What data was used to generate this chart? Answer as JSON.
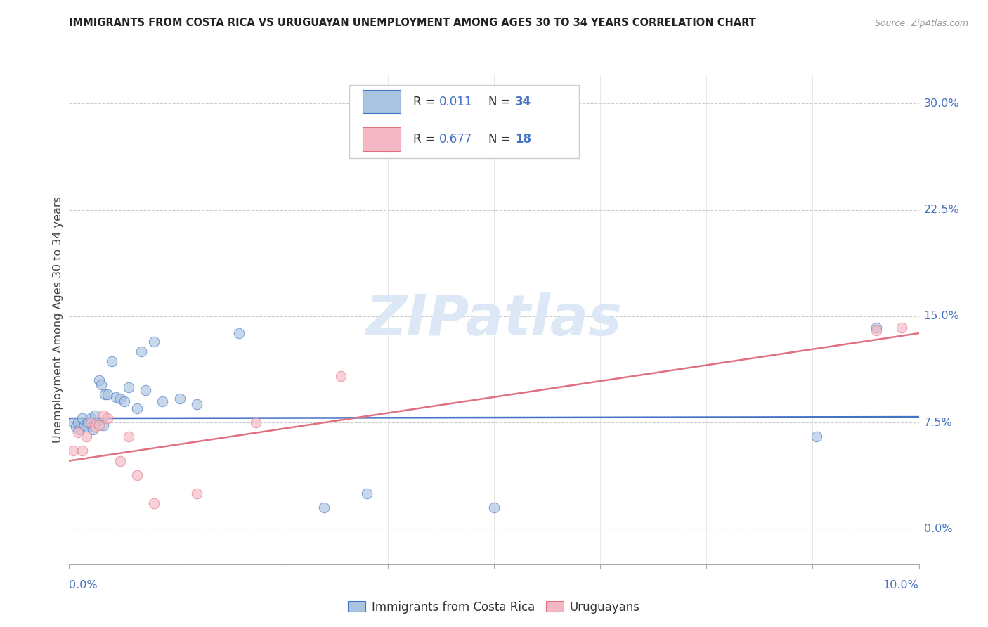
{
  "title": "IMMIGRANTS FROM COSTA RICA VS URUGUAYAN UNEMPLOYMENT AMONG AGES 30 TO 34 YEARS CORRELATION CHART",
  "source": "Source: ZipAtlas.com",
  "ylabel": "Unemployment Among Ages 30 to 34 years",
  "ytick_values": [
    0.0,
    7.5,
    15.0,
    22.5,
    30.0
  ],
  "xlim": [
    0.0,
    10.0
  ],
  "ylim": [
    -2.5,
    32.0
  ],
  "ymin_data": 0.0,
  "ymax_data": 30.0,
  "color_blue": "#a8c4e0",
  "color_pink": "#f4b8c4",
  "line_blue": "#4472c4",
  "line_pink": "#e07080",
  "axis_color": "#4472c4",
  "title_color": "#222222",
  "source_color": "#999999",
  "watermark_color": "#dce8f5",
  "blue_points_x": [
    0.05,
    0.08,
    0.1,
    0.12,
    0.15,
    0.18,
    0.2,
    0.22,
    0.25,
    0.28,
    0.3,
    0.32,
    0.35,
    0.38,
    0.4,
    0.42,
    0.45,
    0.5,
    0.55,
    0.6,
    0.65,
    0.7,
    0.8,
    0.85,
    0.9,
    1.0,
    1.1,
    1.3,
    1.5,
    2.0,
    3.0,
    3.5,
    5.0,
    8.8,
    9.5
  ],
  "blue_points_y": [
    7.5,
    7.2,
    7.5,
    7.0,
    7.8,
    7.3,
    7.2,
    7.5,
    7.8,
    7.0,
    8.0,
    7.5,
    10.5,
    10.2,
    7.3,
    9.5,
    9.5,
    11.8,
    9.3,
    9.2,
    9.0,
    10.0,
    8.5,
    12.5,
    9.8,
    13.2,
    9.0,
    9.2,
    8.8,
    13.8,
    1.5,
    2.5,
    1.5,
    6.5,
    14.2
  ],
  "pink_points_x": [
    0.05,
    0.1,
    0.15,
    0.2,
    0.25,
    0.3,
    0.35,
    0.4,
    0.45,
    0.6,
    0.7,
    0.8,
    1.0,
    1.5,
    2.2,
    3.2,
    9.5,
    9.8
  ],
  "pink_points_y": [
    5.5,
    6.8,
    5.5,
    6.5,
    7.5,
    7.2,
    7.3,
    8.0,
    7.8,
    4.8,
    6.5,
    3.8,
    1.8,
    2.5,
    7.5,
    10.8,
    14.0,
    14.2
  ],
  "blue_trend_x": [
    0.0,
    10.0
  ],
  "blue_trend_y": [
    7.8,
    7.9
  ],
  "pink_trend_x": [
    0.0,
    10.0
  ],
  "pink_trend_y": [
    4.8,
    13.8
  ],
  "marker_size": 110,
  "marker_alpha": 0.65,
  "legend_text_color": "#333333",
  "legend_n_color": "#4472c4",
  "bottom_legend_blue": "Immigrants from Costa Rica",
  "bottom_legend_pink": "Uruguayans"
}
